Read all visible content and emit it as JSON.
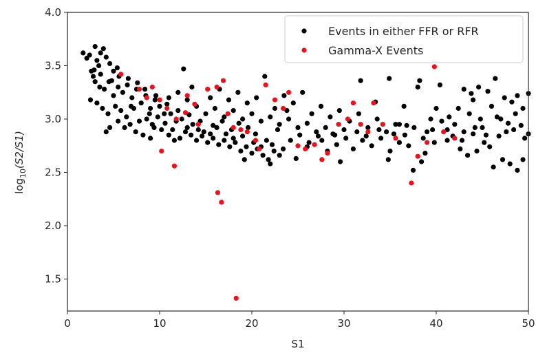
{
  "chart_data": {
    "type": "scatter",
    "xlabel": "S1",
    "ylabel": {
      "prefix": "log",
      "sub": "10",
      "body": "(S2/S1)"
    },
    "xlim": [
      0,
      50
    ],
    "ylim": [
      1.2,
      4.0
    ],
    "x_ticks": [
      0,
      10,
      20,
      30,
      40,
      50
    ],
    "x_tick_labels": [
      "0",
      "10",
      "20",
      "30",
      "40",
      "50"
    ],
    "y_ticks": [
      1.5,
      2.0,
      2.5,
      3.0,
      3.5,
      4.0
    ],
    "y_tick_labels": [
      "1.5",
      "2.0",
      "2.5",
      "3.0",
      "3.5",
      "4.0"
    ],
    "grid": false,
    "legend_position": "top-right",
    "series": [
      {
        "name": "Events in either FFR or RFR",
        "color": "#000000",
        "points": [
          [
            1.7,
            3.62
          ],
          [
            2.1,
            3.57
          ],
          [
            2.4,
            3.6
          ],
          [
            2.6,
            3.45
          ],
          [
            2.8,
            3.4
          ],
          [
            3.0,
            3.68
          ],
          [
            3.2,
            3.55
          ],
          [
            3.4,
            3.5
          ],
          [
            3.6,
            3.62
          ],
          [
            3.9,
            3.66
          ],
          [
            4.2,
            3.58
          ],
          [
            4.6,
            3.52
          ],
          [
            5.0,
            3.45
          ],
          [
            5.4,
            3.48
          ],
          [
            3.0,
            3.35
          ],
          [
            3.5,
            3.3
          ],
          [
            4.0,
            3.28
          ],
          [
            4.5,
            3.35
          ],
          [
            5.0,
            3.22
          ],
          [
            5.5,
            3.3
          ],
          [
            6.0,
            3.25
          ],
          [
            6.5,
            3.32
          ],
          [
            7.0,
            3.2
          ],
          [
            7.5,
            3.28
          ],
          [
            8.0,
            3.15
          ],
          [
            8.5,
            3.22
          ],
          [
            9.0,
            3.1
          ],
          [
            9.5,
            3.18
          ],
          [
            10.0,
            3.12
          ],
          [
            10.5,
            3.05
          ],
          [
            2.5,
            3.18
          ],
          [
            3.2,
            3.15
          ],
          [
            3.8,
            3.1
          ],
          [
            4.4,
            3.05
          ],
          [
            5.2,
            3.12
          ],
          [
            5.8,
            3.08
          ],
          [
            6.4,
            3.02
          ],
          [
            7.2,
            3.1
          ],
          [
            7.8,
            2.98
          ],
          [
            8.6,
            3.0
          ],
          [
            9.2,
            2.95
          ],
          [
            9.8,
            3.02
          ],
          [
            10.6,
            2.96
          ],
          [
            11.2,
            3.05
          ],
          [
            11.8,
            2.98
          ],
          [
            12.4,
            3.0
          ],
          [
            13.0,
            2.92
          ],
          [
            13.6,
            2.95
          ],
          [
            14.2,
            2.9
          ],
          [
            14.8,
            2.88
          ],
          [
            4.2,
            2.88
          ],
          [
            4.6,
            2.92
          ],
          [
            5.5,
            2.98
          ],
          [
            6.2,
            2.92
          ],
          [
            6.8,
            2.95
          ],
          [
            7.4,
            2.88
          ],
          [
            8.2,
            2.85
          ],
          [
            9.0,
            2.82
          ],
          [
            10.2,
            2.9
          ],
          [
            11.0,
            2.85
          ],
          [
            11.6,
            2.8
          ],
          [
            12.2,
            2.82
          ],
          [
            12.8,
            2.88
          ],
          [
            13.4,
            2.85
          ],
          [
            14.0,
            2.8
          ],
          [
            14.6,
            2.84
          ],
          [
            15.2,
            2.78
          ],
          [
            15.8,
            2.82
          ],
          [
            16.4,
            2.76
          ],
          [
            17.0,
            2.8
          ],
          [
            17.6,
            2.74
          ],
          [
            18.2,
            2.78
          ],
          [
            18.8,
            2.7
          ],
          [
            19.4,
            2.74
          ],
          [
            20.0,
            2.68
          ],
          [
            20.6,
            2.72
          ],
          [
            21.2,
            2.66
          ],
          [
            21.8,
            2.62
          ],
          [
            22.4,
            2.7
          ],
          [
            23.0,
            2.66
          ],
          [
            11.0,
            3.2
          ],
          [
            12.0,
            3.25
          ],
          [
            13.0,
            3.18
          ],
          [
            14.0,
            3.12
          ],
          [
            15.0,
            3.05
          ],
          [
            16.0,
            3.1
          ],
          [
            17.0,
            3.02
          ],
          [
            18.0,
            3.08
          ],
          [
            19.0,
            3.0
          ],
          [
            20.0,
            3.05
          ],
          [
            21.0,
            2.98
          ],
          [
            22.0,
            3.02
          ],
          [
            23.0,
            2.95
          ],
          [
            24.0,
            3.0
          ],
          [
            25.0,
            2.92
          ],
          [
            26.0,
            2.96
          ],
          [
            27.0,
            2.88
          ],
          [
            28.0,
            2.92
          ],
          [
            29.0,
            2.85
          ],
          [
            30.0,
            2.9
          ],
          [
            12.6,
            3.47
          ],
          [
            13.5,
            3.3
          ],
          [
            15.5,
            3.2
          ],
          [
            16.5,
            3.28
          ],
          [
            17.5,
            3.18
          ],
          [
            18.5,
            3.25
          ],
          [
            19.5,
            3.15
          ],
          [
            20.5,
            3.2
          ],
          [
            21.4,
            3.4
          ],
          [
            22.5,
            3.1
          ],
          [
            23.5,
            3.22
          ],
          [
            24.5,
            3.15
          ],
          [
            25.5,
            3.25
          ],
          [
            26.5,
            3.05
          ],
          [
            27.5,
            3.12
          ],
          [
            28.5,
            3.02
          ],
          [
            29.5,
            3.08
          ],
          [
            24.8,
            2.63
          ],
          [
            22.0,
            2.58
          ],
          [
            19.2,
            2.62
          ],
          [
            26.2,
            2.78
          ],
          [
            27.2,
            2.84
          ],
          [
            28.2,
            2.7
          ],
          [
            29.2,
            2.76
          ],
          [
            31.0,
            2.72
          ],
          [
            32.0,
            2.8
          ],
          [
            33.0,
            2.75
          ],
          [
            34.0,
            2.82
          ],
          [
            35.0,
            2.7
          ],
          [
            36.0,
            2.78
          ],
          [
            30.6,
            2.98
          ],
          [
            31.6,
            3.05
          ],
          [
            32.6,
            2.92
          ],
          [
            33.6,
            3.0
          ],
          [
            34.6,
            2.88
          ],
          [
            35.6,
            2.95
          ],
          [
            36.6,
            2.85
          ],
          [
            37.6,
            2.92
          ],
          [
            38.6,
            2.82
          ],
          [
            39.6,
            2.9
          ],
          [
            29.6,
            2.6
          ],
          [
            31.8,
            3.36
          ],
          [
            33.4,
            3.16
          ],
          [
            34.9,
            3.38
          ],
          [
            36.5,
            3.12
          ],
          [
            38.0,
            3.3
          ],
          [
            38.2,
            3.36
          ],
          [
            40.4,
            3.32
          ],
          [
            41.4,
            3.02
          ],
          [
            42.0,
            2.95
          ],
          [
            40.6,
            2.98
          ],
          [
            41.2,
            2.9
          ],
          [
            42.4,
            3.1
          ],
          [
            43.0,
            2.88
          ],
          [
            43.6,
            3.05
          ],
          [
            44.2,
            2.92
          ],
          [
            44.8,
            3.0
          ],
          [
            45.4,
            2.85
          ],
          [
            46.0,
            3.12
          ],
          [
            46.6,
            3.02
          ],
          [
            41.2,
            2.8
          ],
          [
            42.6,
            2.72
          ],
          [
            43.4,
            2.66
          ],
          [
            44.4,
            2.7
          ],
          [
            45.2,
            2.78
          ],
          [
            46.2,
            2.55
          ],
          [
            47.2,
            2.62
          ],
          [
            48.0,
            2.58
          ],
          [
            48.8,
            2.52
          ],
          [
            49.4,
            2.62
          ],
          [
            43.0,
            3.28
          ],
          [
            43.8,
            3.24
          ],
          [
            44.6,
            3.3
          ],
          [
            45.6,
            3.26
          ],
          [
            46.4,
            3.38
          ],
          [
            47.4,
            3.2
          ],
          [
            48.2,
            3.16
          ],
          [
            48.8,
            3.22
          ],
          [
            49.4,
            3.1
          ],
          [
            50.0,
            3.24
          ],
          [
            37.5,
            2.52
          ],
          [
            38.4,
            2.6
          ],
          [
            39.4,
            3.0
          ],
          [
            40.0,
            3.1
          ],
          [
            47.0,
            3.0
          ],
          [
            47.8,
            2.96
          ],
          [
            48.6,
            3.05
          ],
          [
            49.6,
            2.82
          ],
          [
            45.8,
            2.74
          ],
          [
            44.0,
            3.18
          ],
          [
            34.8,
            2.62
          ],
          [
            36.0,
            2.95
          ],
          [
            37.0,
            2.75
          ],
          [
            38.8,
            2.68
          ],
          [
            39.8,
            2.78
          ],
          [
            23.8,
            3.08
          ],
          [
            22.8,
            2.9
          ],
          [
            21.6,
            2.8
          ],
          [
            20.4,
            2.86
          ],
          [
            19.6,
            2.92
          ],
          [
            18.6,
            2.96
          ],
          [
            17.8,
            2.9
          ],
          [
            16.8,
            2.98
          ],
          [
            15.8,
            2.94
          ],
          [
            14.4,
            2.98
          ],
          [
            13.2,
            3.04
          ],
          [
            12.0,
            3.08
          ],
          [
            10.8,
            3.14
          ],
          [
            9.6,
            3.22
          ],
          [
            8.4,
            3.28
          ],
          [
            7.6,
            3.34
          ],
          [
            6.6,
            3.38
          ],
          [
            5.6,
            3.4
          ],
          [
            4.8,
            3.36
          ],
          [
            3.6,
            3.42
          ],
          [
            2.9,
            3.46
          ],
          [
            6.9,
            3.12
          ],
          [
            8.9,
            3.05
          ],
          [
            9.4,
            2.92
          ],
          [
            11.4,
            2.9
          ],
          [
            15.5,
            2.86
          ],
          [
            16.2,
            2.92
          ],
          [
            17.2,
            2.86
          ],
          [
            18.0,
            2.82
          ],
          [
            19.0,
            2.84
          ],
          [
            20.2,
            2.78
          ],
          [
            21.0,
            2.74
          ],
          [
            22.2,
            2.76
          ],
          [
            23.4,
            2.72
          ],
          [
            24.2,
            2.8
          ],
          [
            25.2,
            2.85
          ],
          [
            26.0,
            2.74
          ],
          [
            27.6,
            2.8
          ],
          [
            28.8,
            2.86
          ],
          [
            30.2,
            2.82
          ],
          [
            31.4,
            2.88
          ],
          [
            32.4,
            2.84
          ],
          [
            33.8,
            2.9
          ],
          [
            35.4,
            2.86
          ],
          [
            36.8,
            2.94
          ],
          [
            39.0,
            2.88
          ],
          [
            41.8,
            2.84
          ],
          [
            42.8,
            2.8
          ],
          [
            44.0,
            2.86
          ],
          [
            45.0,
            2.92
          ],
          [
            46.8,
            2.84
          ],
          [
            47.6,
            2.88
          ],
          [
            48.4,
            2.9
          ],
          [
            49.2,
            2.94
          ],
          [
            50.0,
            2.86
          ]
        ]
      },
      {
        "name": "Gamma-X Events",
        "color": "#e6141e",
        "points": [
          [
            5.8,
            3.42
          ],
          [
            7.8,
            3.28
          ],
          [
            9.2,
            3.3
          ],
          [
            10.0,
            3.18
          ],
          [
            10.8,
            3.1
          ],
          [
            11.8,
            3.0
          ],
          [
            13.0,
            3.22
          ],
          [
            14.2,
            2.95
          ],
          [
            15.2,
            3.28
          ],
          [
            16.2,
            3.3
          ],
          [
            16.9,
            3.36
          ],
          [
            17.4,
            3.05
          ],
          [
            18.0,
            2.92
          ],
          [
            18.8,
            2.9
          ],
          [
            19.5,
            2.88
          ],
          [
            20.4,
            2.8
          ],
          [
            20.8,
            2.72
          ],
          [
            21.5,
            3.32
          ],
          [
            22.5,
            3.18
          ],
          [
            23.4,
            3.1
          ],
          [
            24.0,
            3.25
          ],
          [
            25.0,
            2.75
          ],
          [
            25.8,
            2.72
          ],
          [
            27.6,
            2.62
          ],
          [
            28.2,
            2.68
          ],
          [
            30.4,
            3.0
          ],
          [
            31.0,
            3.15
          ],
          [
            32.6,
            2.88
          ],
          [
            33.2,
            3.15
          ],
          [
            34.2,
            2.95
          ],
          [
            35.6,
            2.82
          ],
          [
            37.3,
            2.4
          ],
          [
            38.0,
            2.65
          ],
          [
            39.0,
            2.78
          ],
          [
            39.8,
            3.49
          ],
          [
            40.8,
            2.88
          ],
          [
            42.0,
            2.82
          ],
          [
            10.2,
            2.7
          ],
          [
            11.6,
            2.56
          ],
          [
            16.3,
            2.31
          ],
          [
            16.7,
            2.22
          ],
          [
            18.3,
            1.32
          ],
          [
            12.8,
            3.06
          ],
          [
            13.8,
            3.14
          ],
          [
            8.6,
            3.2
          ],
          [
            26.8,
            2.76
          ],
          [
            29.4,
            2.95
          ],
          [
            31.8,
            2.95
          ]
        ]
      }
    ]
  }
}
